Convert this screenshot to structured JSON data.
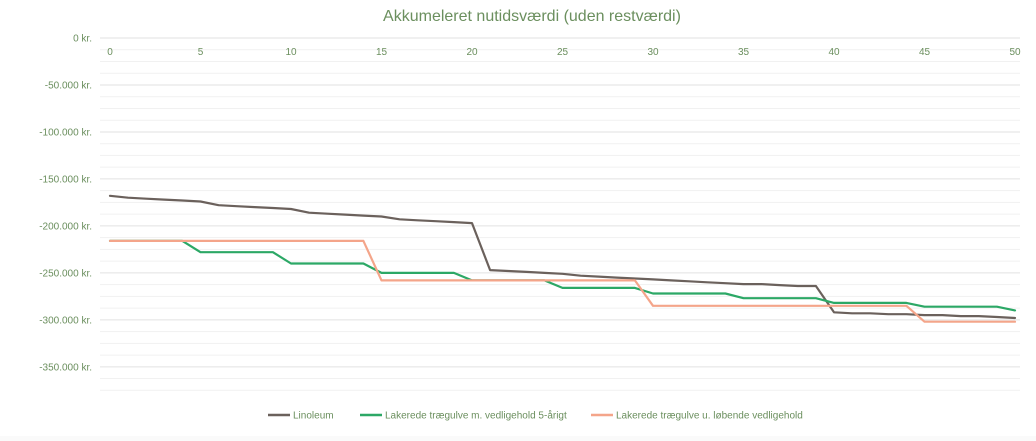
{
  "chart_data": {
    "type": "line",
    "title": "Akkumeleret nutidsværdi (uden restværdi)",
    "xlabel": "",
    "ylabel": "",
    "xlim": [
      0,
      50
    ],
    "ylim": [
      -380000,
      0
    ],
    "x_ticks": [
      "0",
      "5",
      "10",
      "15",
      "20",
      "25",
      "30",
      "35",
      "40",
      "45",
      "50"
    ],
    "y_ticks": [
      {
        "value": 0,
        "label": "0 kr."
      },
      {
        "value": -50000,
        "label": "-50.000 kr."
      },
      {
        "value": -100000,
        "label": "-100.000 kr."
      },
      {
        "value": -150000,
        "label": "-150.000 kr."
      },
      {
        "value": -200000,
        "label": "-200.000 kr."
      },
      {
        "value": -250000,
        "label": "-250.000 kr."
      },
      {
        "value": -300000,
        "label": "-300.000 kr."
      },
      {
        "value": -350000,
        "label": "-350.000 kr."
      }
    ],
    "grid": true,
    "legend_position": "bottom",
    "x": [
      0,
      1,
      2,
      3,
      4,
      5,
      6,
      7,
      8,
      9,
      10,
      11,
      12,
      13,
      14,
      15,
      16,
      17,
      18,
      19,
      20,
      21,
      22,
      23,
      24,
      25,
      26,
      27,
      28,
      29,
      30,
      31,
      32,
      33,
      34,
      35,
      36,
      37,
      38,
      39,
      40,
      41,
      42,
      43,
      44,
      45,
      46,
      47,
      48,
      49,
      50
    ],
    "series": [
      {
        "name": "Linoleum",
        "color": "#6b615c",
        "values": [
          -168000,
          -170000,
          -171000,
          -172000,
          -173000,
          -174000,
          -178000,
          -179000,
          -180000,
          -181000,
          -182000,
          -186000,
          -187000,
          -188000,
          -189000,
          -190000,
          -193000,
          -194000,
          -195000,
          -196000,
          -197000,
          -247000,
          -248000,
          -249000,
          -250000,
          -251000,
          -253000,
          -254000,
          -255000,
          -256000,
          -257000,
          -258000,
          -259000,
          -260000,
          -261000,
          -262000,
          -262000,
          -263000,
          -264000,
          -264000,
          -292000,
          -293000,
          -293000,
          -294000,
          -294000,
          -295000,
          -295000,
          -296000,
          -296000,
          -297000,
          -298000
        ]
      },
      {
        "name": "Lakerede trægulve m. vedligehold 5-årigt",
        "color": "#2ca866",
        "values": [
          -216000,
          -216000,
          -216000,
          -216000,
          -216000,
          -228000,
          -228000,
          -228000,
          -228000,
          -228000,
          -240000,
          -240000,
          -240000,
          -240000,
          -240000,
          -250000,
          -250000,
          -250000,
          -250000,
          -250000,
          -258000,
          -258000,
          -258000,
          -258000,
          -258000,
          -266000,
          -266000,
          -266000,
          -266000,
          -266000,
          -272000,
          -272000,
          -272000,
          -272000,
          -272000,
          -277000,
          -277000,
          -277000,
          -277000,
          -277000,
          -282000,
          -282000,
          -282000,
          -282000,
          -282000,
          -286000,
          -286000,
          -286000,
          -286000,
          -286000,
          -290000
        ]
      },
      {
        "name": "Lakerede trægulve u. løbende vedligehold",
        "color": "#f4a58a",
        "values": [
          -216000,
          -216000,
          -216000,
          -216000,
          -216000,
          -216000,
          -216000,
          -216000,
          -216000,
          -216000,
          -216000,
          -216000,
          -216000,
          -216000,
          -216000,
          -258000,
          -258000,
          -258000,
          -258000,
          -258000,
          -258000,
          -258000,
          -258000,
          -258000,
          -258000,
          -258000,
          -258000,
          -258000,
          -258000,
          -258000,
          -285000,
          -285000,
          -285000,
          -285000,
          -285000,
          -285000,
          -285000,
          -285000,
          -285000,
          -285000,
          -285000,
          -285000,
          -285000,
          -285000,
          -285000,
          -302000,
          -302000,
          -302000,
          -302000,
          -302000,
          -302000
        ]
      }
    ]
  }
}
